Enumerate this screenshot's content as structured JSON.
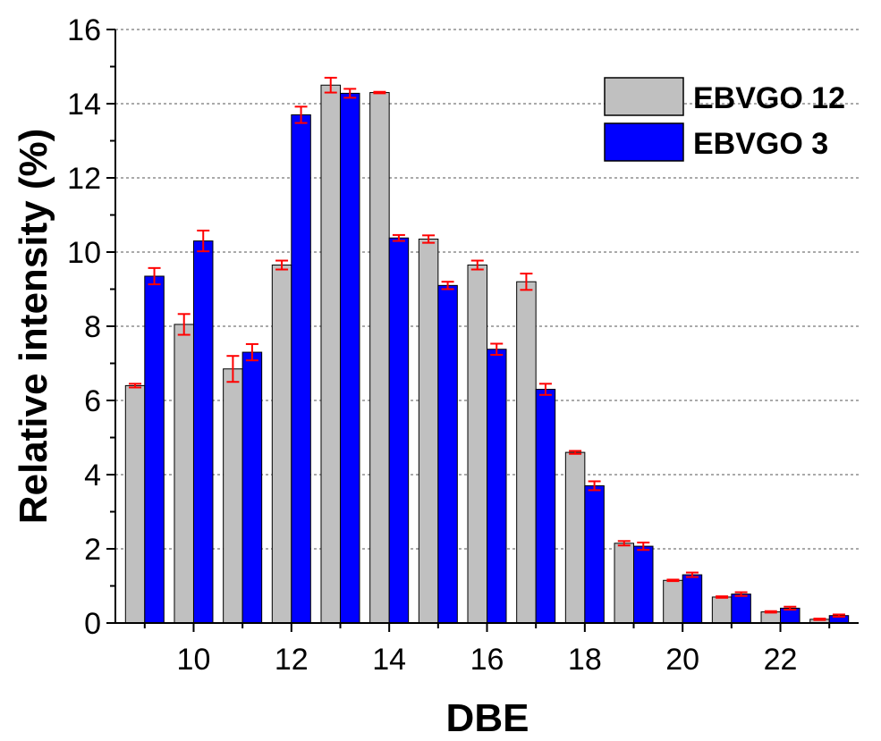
{
  "chart_data": {
    "type": "bar",
    "x": [
      9,
      10,
      11,
      12,
      13,
      14,
      15,
      16,
      17,
      18,
      19,
      20,
      21,
      22,
      23
    ],
    "series": [
      {
        "name": "EBVGO 12",
        "color": "#c0c0c0",
        "values": [
          6.4,
          8.05,
          6.85,
          9.65,
          14.5,
          14.3,
          10.35,
          9.65,
          9.2,
          4.6,
          2.15,
          1.15,
          0.7,
          0.3,
          0.1
        ],
        "errors": [
          0.05,
          0.28,
          0.35,
          0.12,
          0.2,
          0.02,
          0.1,
          0.12,
          0.22,
          0.04,
          0.06,
          0.02,
          0.02,
          0.02,
          0.02
        ]
      },
      {
        "name": "EBVGO 3",
        "color": "#0000ff",
        "values": [
          9.35,
          10.3,
          7.3,
          13.7,
          14.28,
          10.38,
          9.1,
          7.38,
          6.3,
          3.7,
          2.07,
          1.3,
          0.78,
          0.4,
          0.2
        ],
        "errors": [
          0.22,
          0.28,
          0.22,
          0.22,
          0.12,
          0.08,
          0.1,
          0.15,
          0.15,
          0.12,
          0.1,
          0.06,
          0.05,
          0.04,
          0.03
        ]
      }
    ],
    "error_bar_color": "#ff0000",
    "xlabel": "DBE",
    "ylabel": "Relative intensity (%)",
    "xticks": [
      10,
      12,
      14,
      16,
      18,
      20,
      22
    ],
    "yticks": [
      0,
      2,
      4,
      6,
      8,
      10,
      12,
      14,
      16
    ],
    "xlim": [
      8.4,
      23.6
    ],
    "ylim": [
      0,
      16
    ],
    "grid": "horizontal dashed",
    "legend_position": "top-right"
  }
}
